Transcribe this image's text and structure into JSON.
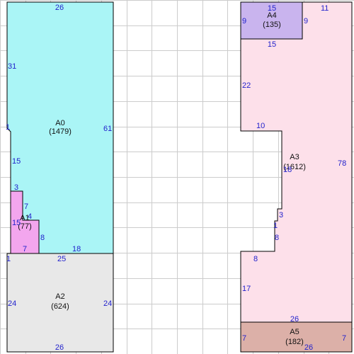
{
  "grid": {
    "visible": true,
    "line_color": "#cccccc"
  },
  "colors": {
    "outline": "#000000",
    "dimension_text": "#2222cc",
    "label_text": "#111111"
  },
  "areas": [
    {
      "id": "A0",
      "value": "(1479)",
      "fill": "#aaf5f6"
    },
    {
      "id": "A1",
      "value": "(77)",
      "fill": "#f3a6ee"
    },
    {
      "id": "A2",
      "value": "(624)",
      "fill": "#e8e8e8"
    },
    {
      "id": "A3",
      "value": "(1612)",
      "fill": "#fde0ea"
    },
    {
      "id": "A4",
      "value": "(135)",
      "fill": "#c9b4ee"
    },
    {
      "id": "A5",
      "value": "(182)",
      "fill": "#dcb0a8"
    }
  ],
  "dimensions": {
    "a0_top": "26",
    "a0_left_upper": "31",
    "a0_notch": "1",
    "a0_right": "61",
    "a0_left_lower": "15",
    "a1_top": "3",
    "a1_right_upper": "7",
    "a1_step": "4",
    "a1_left": "15",
    "a1_right_lower": "8",
    "a1_bottom": "7",
    "a0_bottom_notch": "1",
    "a0_bottom_mid": "25",
    "a0_bottom_right": "18",
    "a2_left": "24",
    "a2_right": "24",
    "a2_bottom": "26",
    "a4_top": "15",
    "a4_left": "9",
    "a4_right": "9",
    "a4_bottom": "15",
    "a3_top_right": "11",
    "a3_left_upper": "22",
    "a3_step_top": "10",
    "a3_right": "78",
    "a3_inner_mid": "18",
    "a3_inner_small": "3",
    "a3_inner_one": "1",
    "a3_inner_lower": "8",
    "a3_step_bottom": "8",
    "a3_left_lower": "17",
    "a5_top": "26",
    "a5_left": "7",
    "a5_right": "7",
    "a5_bottom": "26"
  }
}
